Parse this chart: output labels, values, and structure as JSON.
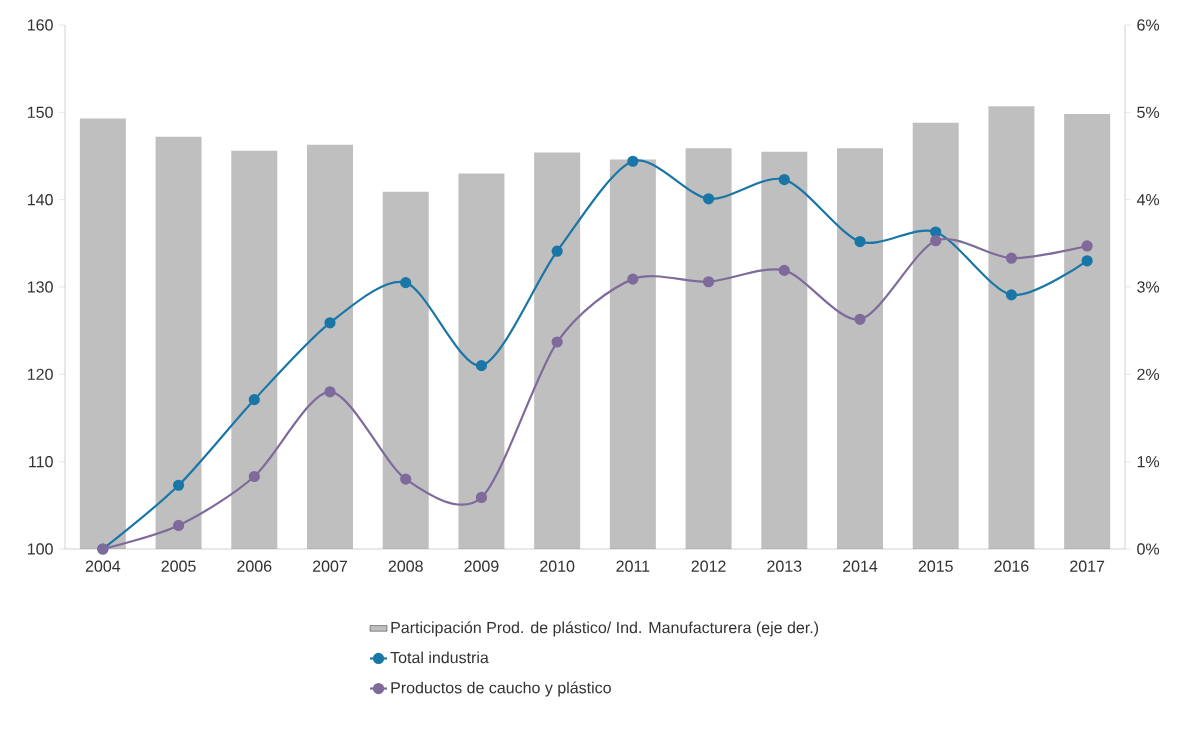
{
  "chart_data": {
    "type": "bar",
    "categories": [
      "2004",
      "2005",
      "2006",
      "2007",
      "2008",
      "2009",
      "2010",
      "2011",
      "2012",
      "2013",
      "2014",
      "2015",
      "2016",
      "2017"
    ],
    "series": [
      {
        "name": "Participación Prod. de plástico/ Ind. Manufacturera (eje der.)",
        "axis": "y2",
        "color": "#bfbfbf",
        "values": [
          4.93,
          4.72,
          4.56,
          4.63,
          4.09,
          4.3,
          4.54,
          4.46,
          4.59,
          4.55,
          4.59,
          4.88,
          5.07,
          4.98
        ]
      },
      {
        "name": "Total industria",
        "type": "line",
        "color": "#1a76a6",
        "values": [
          100,
          107.3,
          117.1,
          125.9,
          130.5,
          121.0,
          134.1,
          144.4,
          140.1,
          142.3,
          135.2,
          136.3,
          129.1,
          133.0
        ]
      },
      {
        "name": "Productos de caucho y plástico",
        "type": "line",
        "color": "#7e6a9b",
        "values": [
          100,
          102.7,
          108.3,
          118.0,
          108.0,
          105.9,
          123.7,
          130.9,
          130.6,
          131.9,
          126.3,
          135.3,
          133.3,
          134.7
        ]
      }
    ],
    "ylim": [
      100,
      160
    ],
    "yticks": [
      100,
      110,
      120,
      130,
      140,
      150,
      160
    ],
    "y2lim": [
      0,
      6
    ],
    "y2ticks": [
      {
        "value": 0,
        "label": "0%"
      },
      {
        "value": 1,
        "label": "1%"
      },
      {
        "value": 2,
        "label": "2%"
      },
      {
        "value": 3,
        "label": "3%"
      },
      {
        "value": 4,
        "label": "4%"
      },
      {
        "value": 5,
        "label": "5%"
      },
      {
        "value": 6,
        "label": "6%"
      }
    ],
    "marker": "circle",
    "legend": "bottom"
  }
}
